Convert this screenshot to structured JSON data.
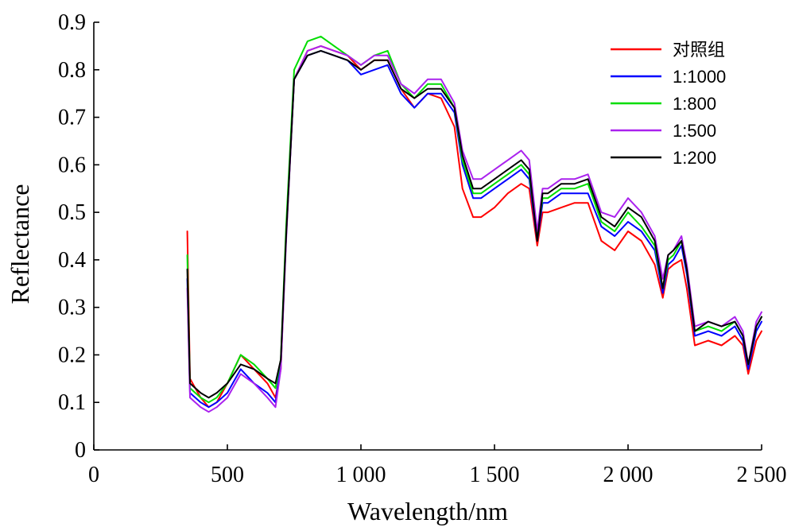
{
  "chart_data": {
    "type": "line",
    "xlabel": "Wavelength/nm",
    "ylabel": "Reflectance",
    "xlim": [
      0,
      2500
    ],
    "ylim": [
      0,
      0.9
    ],
    "x_ticks": [
      0,
      500,
      1000,
      1500,
      2000,
      2500
    ],
    "x_tick_labels": [
      "0",
      "500",
      "1 000",
      "1 500",
      "2 000",
      "2 500"
    ],
    "y_ticks": [
      0,
      0.1,
      0.2,
      0.3,
      0.4,
      0.5,
      0.6,
      0.7,
      0.8,
      0.9
    ],
    "y_tick_labels": [
      "0",
      "0.1",
      "0.2",
      "0.3",
      "0.4",
      "0.5",
      "0.6",
      "0.7",
      "0.8",
      "0.9"
    ],
    "grid": false,
    "legend_position": "top-right",
    "x": [
      350,
      360,
      380,
      400,
      430,
      460,
      500,
      550,
      600,
      650,
      680,
      700,
      720,
      750,
      800,
      850,
      900,
      950,
      1000,
      1050,
      1100,
      1150,
      1200,
      1250,
      1300,
      1350,
      1380,
      1420,
      1450,
      1500,
      1550,
      1600,
      1630,
      1660,
      1680,
      1700,
      1750,
      1800,
      1850,
      1900,
      1950,
      2000,
      2050,
      2100,
      2130,
      2150,
      2170,
      2200,
      2220,
      2250,
      2300,
      2350,
      2400,
      2430,
      2450,
      2480,
      2500
    ],
    "series": [
      {
        "name": "对照组",
        "color": "#ff0000",
        "values": [
          0.46,
          0.15,
          0.13,
          0.11,
          0.09,
          0.1,
          0.14,
          0.2,
          0.17,
          0.14,
          0.11,
          0.17,
          0.45,
          0.78,
          0.84,
          0.85,
          0.84,
          0.83,
          0.8,
          0.82,
          0.82,
          0.76,
          0.72,
          0.75,
          0.74,
          0.68,
          0.55,
          0.49,
          0.49,
          0.51,
          0.54,
          0.56,
          0.55,
          0.43,
          0.5,
          0.5,
          0.51,
          0.52,
          0.52,
          0.44,
          0.42,
          0.46,
          0.44,
          0.39,
          0.32,
          0.38,
          0.39,
          0.4,
          0.34,
          0.22,
          0.23,
          0.22,
          0.24,
          0.22,
          0.16,
          0.23,
          0.25
        ]
      },
      {
        "name": "1:1000",
        "color": "#0000ff",
        "values": [
          0.36,
          0.12,
          0.11,
          0.1,
          0.09,
          0.1,
          0.12,
          0.17,
          0.14,
          0.12,
          0.1,
          0.18,
          0.45,
          0.78,
          0.83,
          0.84,
          0.83,
          0.82,
          0.79,
          0.8,
          0.81,
          0.75,
          0.72,
          0.75,
          0.75,
          0.71,
          0.6,
          0.53,
          0.53,
          0.55,
          0.57,
          0.59,
          0.57,
          0.44,
          0.52,
          0.52,
          0.54,
          0.54,
          0.54,
          0.47,
          0.45,
          0.48,
          0.46,
          0.42,
          0.33,
          0.39,
          0.4,
          0.43,
          0.37,
          0.24,
          0.25,
          0.24,
          0.26,
          0.23,
          0.17,
          0.25,
          0.27
        ]
      },
      {
        "name": "1:800",
        "color": "#00dd00",
        "values": [
          0.41,
          0.13,
          0.12,
          0.11,
          0.1,
          0.11,
          0.14,
          0.2,
          0.18,
          0.15,
          0.13,
          0.19,
          0.47,
          0.8,
          0.86,
          0.87,
          0.85,
          0.83,
          0.81,
          0.83,
          0.84,
          0.77,
          0.74,
          0.77,
          0.77,
          0.72,
          0.61,
          0.54,
          0.54,
          0.56,
          0.58,
          0.6,
          0.58,
          0.45,
          0.53,
          0.53,
          0.55,
          0.55,
          0.56,
          0.48,
          0.46,
          0.5,
          0.47,
          0.43,
          0.34,
          0.4,
          0.41,
          0.44,
          0.38,
          0.25,
          0.26,
          0.25,
          0.27,
          0.24,
          0.18,
          0.26,
          0.28
        ]
      },
      {
        "name": "1:500",
        "color": "#aa22ee",
        "values": [
          0.34,
          0.11,
          0.1,
          0.09,
          0.08,
          0.09,
          0.11,
          0.16,
          0.14,
          0.11,
          0.09,
          0.17,
          0.44,
          0.78,
          0.84,
          0.85,
          0.84,
          0.83,
          0.81,
          0.83,
          0.83,
          0.77,
          0.75,
          0.78,
          0.78,
          0.73,
          0.63,
          0.57,
          0.57,
          0.59,
          0.61,
          0.63,
          0.61,
          0.46,
          0.55,
          0.55,
          0.57,
          0.57,
          0.58,
          0.5,
          0.49,
          0.53,
          0.5,
          0.45,
          0.36,
          0.41,
          0.42,
          0.45,
          0.39,
          0.26,
          0.27,
          0.26,
          0.28,
          0.25,
          0.18,
          0.27,
          0.29
        ]
      },
      {
        "name": "1:200",
        "color": "#000000",
        "values": [
          0.38,
          0.14,
          0.13,
          0.12,
          0.11,
          0.12,
          0.14,
          0.18,
          0.17,
          0.15,
          0.14,
          0.19,
          0.45,
          0.78,
          0.83,
          0.84,
          0.83,
          0.82,
          0.8,
          0.82,
          0.82,
          0.76,
          0.74,
          0.76,
          0.76,
          0.72,
          0.62,
          0.55,
          0.55,
          0.57,
          0.59,
          0.61,
          0.59,
          0.44,
          0.54,
          0.54,
          0.56,
          0.56,
          0.57,
          0.49,
          0.47,
          0.51,
          0.49,
          0.44,
          0.34,
          0.41,
          0.42,
          0.44,
          0.38,
          0.25,
          0.27,
          0.26,
          0.27,
          0.24,
          0.18,
          0.26,
          0.28
        ]
      }
    ]
  }
}
